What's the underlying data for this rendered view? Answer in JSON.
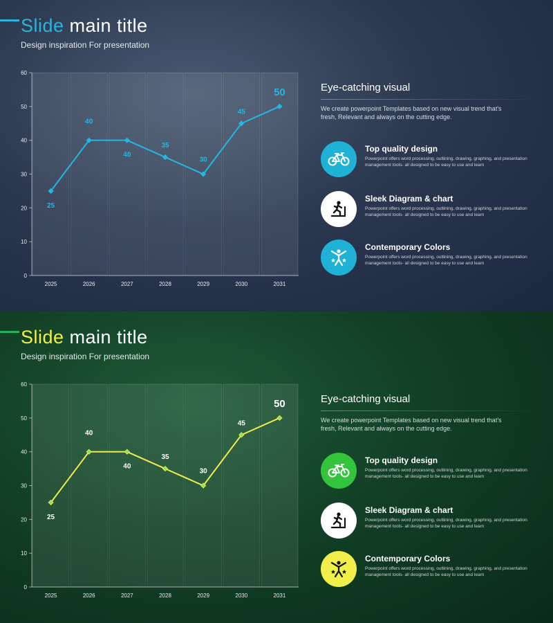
{
  "colors": {
    "blue_accent": "#2ab4dd",
    "green_accent_bar": "#1fb45a",
    "yellow_accent": "#f1ef4a",
    "green_icon": "#33c43c",
    "white_icon": "#ffffff"
  },
  "slides": [
    {
      "theme": "blue",
      "title_accent": "Slide",
      "title_rest": " main title",
      "subtitle": "Design inspiration For presentation",
      "section_title": "Eye-catching visual",
      "section_desc": "We create powerpoint Templates based on new visual trend that's fresh, Relevant and always on the cutting edge.",
      "features": [
        {
          "title": "Top quality design",
          "desc": "Powerpoint offers word processing, outlining, drawing, graphing, and presentation management tools- all designed to be easy to use and learn",
          "icon": "bicycle-icon",
          "circle_color": "#1fb1d6"
        },
        {
          "title": "Sleek Diagram & chart",
          "desc": "Powerpoint offers word processing, outlining, drawing, graphing, and presentation management tools- all designed to be easy to use and learn",
          "icon": "treadmill-icon",
          "circle_color": "#ffffff"
        },
        {
          "title": "Contemporary Colors",
          "desc": "Powerpoint offers word processing, outlining, drawing, graphing, and presentation management tools- all designed to be easy to use and learn",
          "icon": "star-person-icon",
          "circle_color": "#1fb1d6"
        }
      ]
    },
    {
      "theme": "green",
      "title_accent": "Slide",
      "title_rest": " main title",
      "subtitle": "Design inspiration For presentation",
      "section_title": "Eye-catching visual",
      "section_desc": "We create powerpoint Templates based on new visual trend that's fresh, Relevant and always on the cutting edge.",
      "features": [
        {
          "title": "Top quality design",
          "desc": "Powerpoint offers word processing, outlining, drawing, graphing, and presentation management tools- all designed to be easy to use and learn",
          "icon": "bicycle-icon",
          "circle_color": "#33c43c"
        },
        {
          "title": "Sleek Diagram & chart",
          "desc": "Powerpoint offers word processing, outlining, drawing, graphing, and presentation management tools- all designed to be easy to use and learn",
          "icon": "treadmill-icon",
          "circle_color": "#ffffff"
        },
        {
          "title": "Contemporary Colors",
          "desc": "Powerpoint offers word processing, outlining, drawing, graphing, and presentation management tools- all designed to be easy to use and learn",
          "icon": "star-person-icon",
          "circle_color": "#f1ef4a"
        }
      ]
    }
  ],
  "chart_data": [
    {
      "type": "line",
      "categories": [
        "2025",
        "2026",
        "2027",
        "2028",
        "2029",
        "2030",
        "2031"
      ],
      "values": [
        25,
        40,
        40,
        35,
        30,
        45,
        50
      ],
      "data_labels": [
        "25",
        "40",
        "40",
        "35",
        "30",
        "45",
        "50"
      ],
      "ylim": [
        0,
        60
      ],
      "yticks": [
        "0",
        "10",
        "20",
        "30",
        "40",
        "50",
        "60"
      ],
      "line_color": "#22b8e0",
      "label_color": "#22b8e0",
      "marker_fill": "#22b8e0",
      "column_bands": true,
      "grid": false
    },
    {
      "type": "line",
      "categories": [
        "2025",
        "2026",
        "2027",
        "2028",
        "2029",
        "2030",
        "2031"
      ],
      "values": [
        25,
        40,
        40,
        35,
        30,
        45,
        50
      ],
      "data_labels": [
        "25",
        "40",
        "40",
        "35",
        "30",
        "45",
        "50"
      ],
      "ylim": [
        0,
        60
      ],
      "yticks": [
        "0",
        "10",
        "20",
        "30",
        "40",
        "50",
        "60"
      ],
      "line_color": "#f1ef4a",
      "label_color": "#ffffff",
      "marker_fill": "#8be06a",
      "column_bands": true,
      "grid": false
    }
  ]
}
